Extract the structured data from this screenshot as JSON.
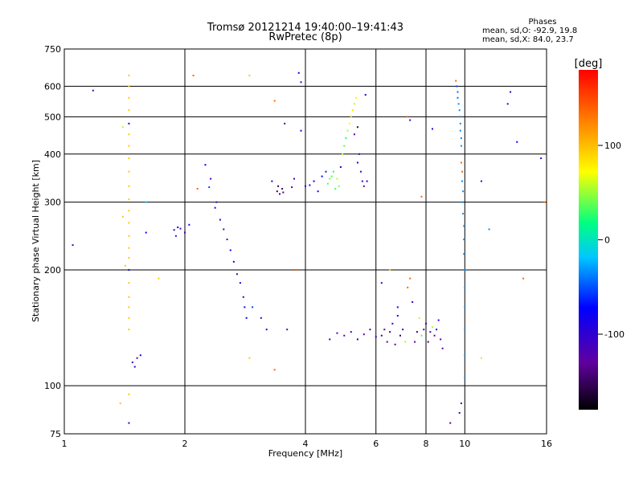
{
  "header": {
    "title": "Tromsø 20121214 19:40:00–19:41:43",
    "subtitle": "RwPretec (8p)"
  },
  "stats": {
    "heading": "Phases",
    "line1": "mean, sd,O: -92.9, 19.8",
    "line2": "mean, sd,X: 84.0, 23.7"
  },
  "colorbar": {
    "label": "[deg]",
    "ticks": [
      "100",
      "0",
      "-100"
    ],
    "tick_values": [
      100,
      0,
      -100
    ],
    "range": [
      -180,
      180
    ],
    "colors": [
      "#000000",
      "#6000a0",
      "#0000ff",
      "#00c8ff",
      "#00ff80",
      "#ffff00",
      "#ff8000",
      "#ff0000"
    ]
  },
  "chart_data": {
    "type": "scatter",
    "title": "Tromsø 20121214 19:40:00–19:41:43",
    "subtitle": "RwPretec (8p)",
    "xlabel": "Frequency [MHz]",
    "ylabel": "Stationary phase Virtual Height [km]",
    "xscale": "log",
    "yscale": "log",
    "xlim": [
      1,
      16
    ],
    "ylim": [
      75,
      750
    ],
    "xticks": [
      1,
      2,
      4,
      6,
      8,
      10,
      16
    ],
    "xtick_labels": [
      "1",
      "2",
      "4",
      "6",
      "8",
      "10",
      "16"
    ],
    "yticks": [
      75,
      100,
      200,
      300,
      400,
      500,
      600,
      750
    ],
    "ytick_labels": [
      "75",
      "100",
      "200",
      "300",
      "400",
      "500",
      "600",
      "750"
    ],
    "grid": true,
    "color_variable": "phase [deg]",
    "points": [
      [
        1.05,
        232,
        -110
      ],
      [
        1.18,
        585,
        -110
      ],
      [
        1.45,
        640,
        100
      ],
      [
        1.45,
        600,
        100
      ],
      [
        1.45,
        560,
        100
      ],
      [
        1.45,
        520,
        100
      ],
      [
        1.45,
        480,
        -90
      ],
      [
        1.45,
        450,
        100
      ],
      [
        1.45,
        420,
        100
      ],
      [
        1.45,
        390,
        100
      ],
      [
        1.45,
        360,
        100
      ],
      [
        1.45,
        330,
        100
      ],
      [
        1.45,
        305,
        100
      ],
      [
        1.45,
        285,
        100
      ],
      [
        1.45,
        265,
        100
      ],
      [
        1.45,
        245,
        100
      ],
      [
        1.45,
        228,
        100
      ],
      [
        1.45,
        215,
        100
      ],
      [
        1.45,
        200,
        -90
      ],
      [
        1.45,
        185,
        100
      ],
      [
        1.45,
        170,
        100
      ],
      [
        1.45,
        160,
        100
      ],
      [
        1.45,
        150,
        100
      ],
      [
        1.45,
        140,
        100
      ],
      [
        1.45,
        95,
        100
      ],
      [
        1.45,
        80,
        -100
      ],
      [
        1.4,
        470,
        60
      ],
      [
        1.4,
        275,
        100
      ],
      [
        1.42,
        205,
        100
      ],
      [
        1.38,
        90,
        100
      ],
      [
        1.48,
        115,
        -120
      ],
      [
        1.5,
        112,
        -110
      ],
      [
        1.52,
        118,
        -120
      ],
      [
        1.55,
        120,
        -100
      ],
      [
        1.6,
        300,
        -30
      ],
      [
        1.6,
        250,
        -80
      ],
      [
        1.72,
        190,
        100
      ],
      [
        1.88,
        254,
        -100
      ],
      [
        1.9,
        245,
        -110
      ],
      [
        1.92,
        258,
        -80
      ],
      [
        1.95,
        256,
        -120
      ],
      [
        2.0,
        250,
        -130
      ],
      [
        2.05,
        262,
        -90
      ],
      [
        2.1,
        640,
        140
      ],
      [
        2.15,
        325,
        140
      ],
      [
        2.25,
        375,
        -80
      ],
      [
        2.3,
        328,
        -60
      ],
      [
        2.32,
        345,
        -110
      ],
      [
        2.38,
        290,
        -100
      ],
      [
        2.4,
        300,
        -100
      ],
      [
        2.45,
        270,
        -100
      ],
      [
        2.5,
        255,
        -110
      ],
      [
        2.55,
        240,
        -120
      ],
      [
        2.6,
        225,
        -90
      ],
      [
        2.65,
        210,
        -80
      ],
      [
        2.7,
        195,
        -110
      ],
      [
        2.75,
        185,
        -100
      ],
      [
        2.8,
        170,
        -100
      ],
      [
        2.82,
        160,
        -90
      ],
      [
        2.85,
        150,
        -80
      ],
      [
        2.9,
        640,
        100
      ],
      [
        2.9,
        118,
        100
      ],
      [
        2.95,
        160,
        -60
      ],
      [
        3.1,
        150,
        -110
      ],
      [
        3.2,
        140,
        -100
      ],
      [
        3.3,
        340,
        -90
      ],
      [
        3.35,
        550,
        140
      ],
      [
        3.35,
        110,
        140
      ],
      [
        3.4,
        320,
        -150
      ],
      [
        3.42,
        330,
        -160
      ],
      [
        3.45,
        315,
        -140
      ],
      [
        3.5,
        325,
        -150
      ],
      [
        3.52,
        318,
        -140
      ],
      [
        3.55,
        480,
        -120
      ],
      [
        3.6,
        140,
        -120
      ],
      [
        3.7,
        328,
        -110
      ],
      [
        3.75,
        345,
        -110
      ],
      [
        3.8,
        200,
        140
      ],
      [
        3.85,
        650,
        -80
      ],
      [
        3.9,
        615,
        -100
      ],
      [
        3.9,
        460,
        -90
      ],
      [
        4.0,
        330,
        -100
      ],
      [
        4.1,
        332,
        -110
      ],
      [
        4.2,
        340,
        -90
      ],
      [
        4.3,
        320,
        -90
      ],
      [
        4.4,
        350,
        -80
      ],
      [
        4.5,
        360,
        -70
      ],
      [
        4.55,
        335,
        40
      ],
      [
        4.6,
        345,
        50
      ],
      [
        4.65,
        350,
        40
      ],
      [
        4.7,
        360,
        30
      ],
      [
        4.75,
        325,
        40
      ],
      [
        4.8,
        345,
        60
      ],
      [
        4.85,
        330,
        50
      ],
      [
        4.9,
        370,
        -100
      ],
      [
        4.95,
        400,
        60
      ],
      [
        5.0,
        420,
        40
      ],
      [
        5.05,
        440,
        30
      ],
      [
        5.1,
        460,
        60
      ],
      [
        5.15,
        480,
        80
      ],
      [
        5.2,
        500,
        100
      ],
      [
        5.25,
        520,
        90
      ],
      [
        5.3,
        540,
        60
      ],
      [
        5.35,
        560,
        80
      ],
      [
        5.4,
        380,
        -90
      ],
      [
        5.45,
        400,
        -100
      ],
      [
        5.5,
        360,
        -110
      ],
      [
        5.55,
        340,
        -120
      ],
      [
        5.6,
        330,
        -130
      ],
      [
        5.65,
        570,
        -90
      ],
      [
        5.7,
        340,
        -100
      ],
      [
        5.3,
        450,
        -120
      ],
      [
        5.4,
        470,
        -150
      ],
      [
        6.2,
        135,
        -140
      ],
      [
        6.3,
        140,
        -130
      ],
      [
        6.4,
        130,
        -120
      ],
      [
        6.5,
        138,
        -110
      ],
      [
        6.6,
        145,
        -100
      ],
      [
        6.7,
        128,
        -130
      ],
      [
        6.8,
        152,
        -90
      ],
      [
        6.9,
        135,
        -150
      ],
      [
        7.0,
        140,
        -100
      ],
      [
        7.1,
        130,
        60
      ],
      [
        7.2,
        180,
        140
      ],
      [
        7.3,
        190,
        140
      ],
      [
        7.4,
        165,
        -110
      ],
      [
        7.5,
        130,
        -130
      ],
      [
        7.6,
        138,
        -150
      ],
      [
        7.7,
        150,
        60
      ],
      [
        7.8,
        135,
        40
      ],
      [
        7.9,
        140,
        -120
      ],
      [
        8.0,
        145,
        -100
      ],
      [
        8.1,
        130,
        -150
      ],
      [
        8.2,
        138,
        -110
      ],
      [
        8.3,
        142,
        60
      ],
      [
        8.4,
        135,
        -120
      ],
      [
        8.5,
        140,
        -100
      ],
      [
        8.6,
        148,
        -100
      ],
      [
        8.7,
        132,
        -120
      ],
      [
        8.8,
        125,
        -130
      ],
      [
        5.0,
        135,
        -120
      ],
      [
        5.2,
        138,
        -110
      ],
      [
        5.4,
        132,
        -100
      ],
      [
        5.6,
        136,
        -120
      ],
      [
        5.8,
        140,
        -130
      ],
      [
        6.0,
        134,
        -110
      ],
      [
        4.6,
        132,
        -110
      ],
      [
        4.8,
        137,
        -120
      ],
      [
        6.2,
        185,
        -110
      ],
      [
        6.5,
        200,
        100
      ],
      [
        6.8,
        160,
        -100
      ],
      [
        7.2,
        500,
        140
      ],
      [
        7.3,
        490,
        -100
      ],
      [
        7.8,
        310,
        140
      ],
      [
        8.3,
        465,
        -100
      ],
      [
        9.5,
        620,
        140
      ],
      [
        9.55,
        600,
        -60
      ],
      [
        9.6,
        580,
        -50
      ],
      [
        9.6,
        560,
        -50
      ],
      [
        9.65,
        540,
        -40
      ],
      [
        9.7,
        520,
        -40
      ],
      [
        9.7,
        500,
        -40
      ],
      [
        9.75,
        480,
        -40
      ],
      [
        9.75,
        460,
        -40
      ],
      [
        9.8,
        440,
        -40
      ],
      [
        9.8,
        420,
        -40
      ],
      [
        9.8,
        380,
        140
      ],
      [
        9.85,
        360,
        140
      ],
      [
        9.85,
        340,
        -40
      ],
      [
        9.9,
        320,
        -40
      ],
      [
        9.9,
        300,
        -40
      ],
      [
        9.9,
        280,
        -40
      ],
      [
        9.95,
        260,
        -40
      ],
      [
        9.95,
        240,
        -40
      ],
      [
        9.95,
        220,
        -40
      ],
      [
        10.0,
        200,
        -40
      ],
      [
        10.0,
        180,
        -40
      ],
      [
        10.0,
        160,
        -40
      ],
      [
        10.0,
        140,
        -40
      ],
      [
        10.0,
        120,
        -40
      ],
      [
        10.0,
        105,
        -40
      ],
      [
        9.8,
        90,
        -120
      ],
      [
        9.7,
        85,
        -110
      ],
      [
        9.2,
        80,
        -120
      ],
      [
        11.0,
        340,
        -110
      ],
      [
        11.5,
        255,
        -40
      ],
      [
        12.8,
        540,
        -110
      ],
      [
        13.0,
        580,
        -100
      ],
      [
        13.5,
        430,
        -80
      ],
      [
        14.0,
        190,
        140
      ],
      [
        15.5,
        390,
        -110
      ],
      [
        15.8,
        300,
        140
      ],
      [
        11.0,
        118,
        60
      ]
    ]
  }
}
